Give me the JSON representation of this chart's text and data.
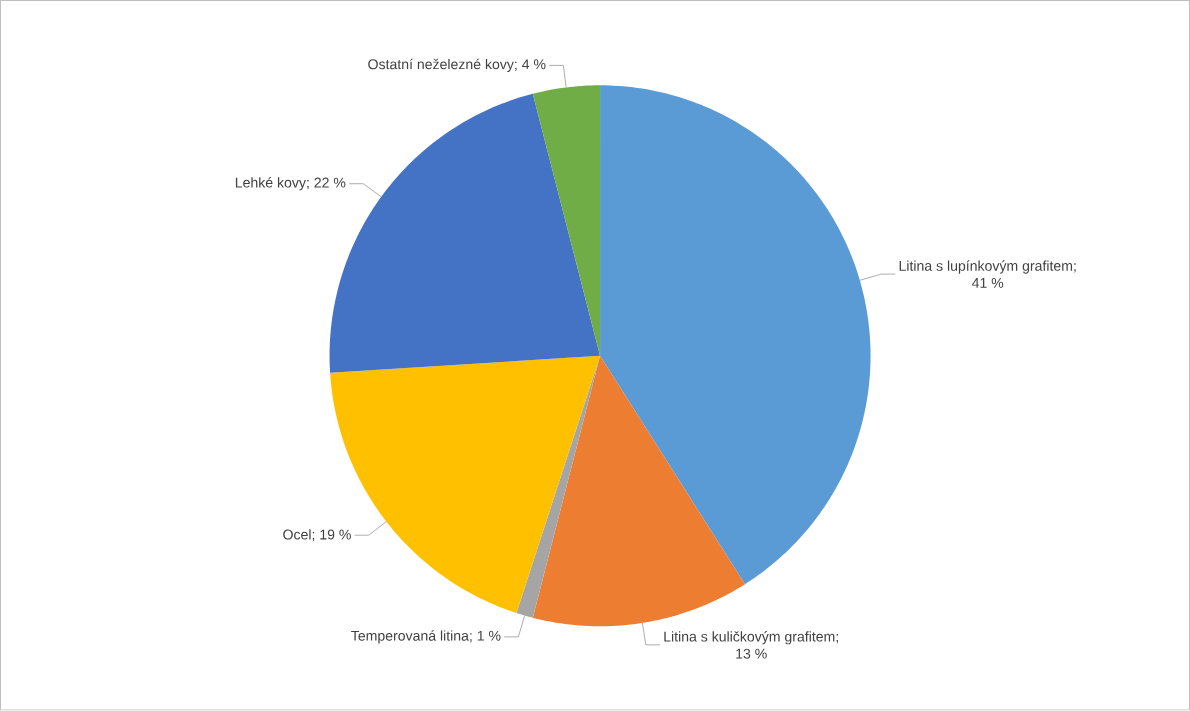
{
  "chart_data": {
    "type": "pie",
    "categories": [
      "Litina s lupínkovým grafitem",
      "Litina s kuličkovým grafitem",
      "Temperovaná litina",
      "Ocel",
      "Lehké kovy",
      "Ostatní neželezné kovy"
    ],
    "values": [
      41,
      13,
      1,
      19,
      22,
      4
    ],
    "value_labels": [
      "; 41 %",
      "; 13 %",
      "; 1 %",
      "; 19 %",
      "; 22 %",
      "; 4 %"
    ],
    "colors": [
      "#5b9bd5",
      "#ed7d31",
      "#a5a5a5",
      "#ffc000",
      "#4472c4",
      "#70ad47"
    ]
  }
}
